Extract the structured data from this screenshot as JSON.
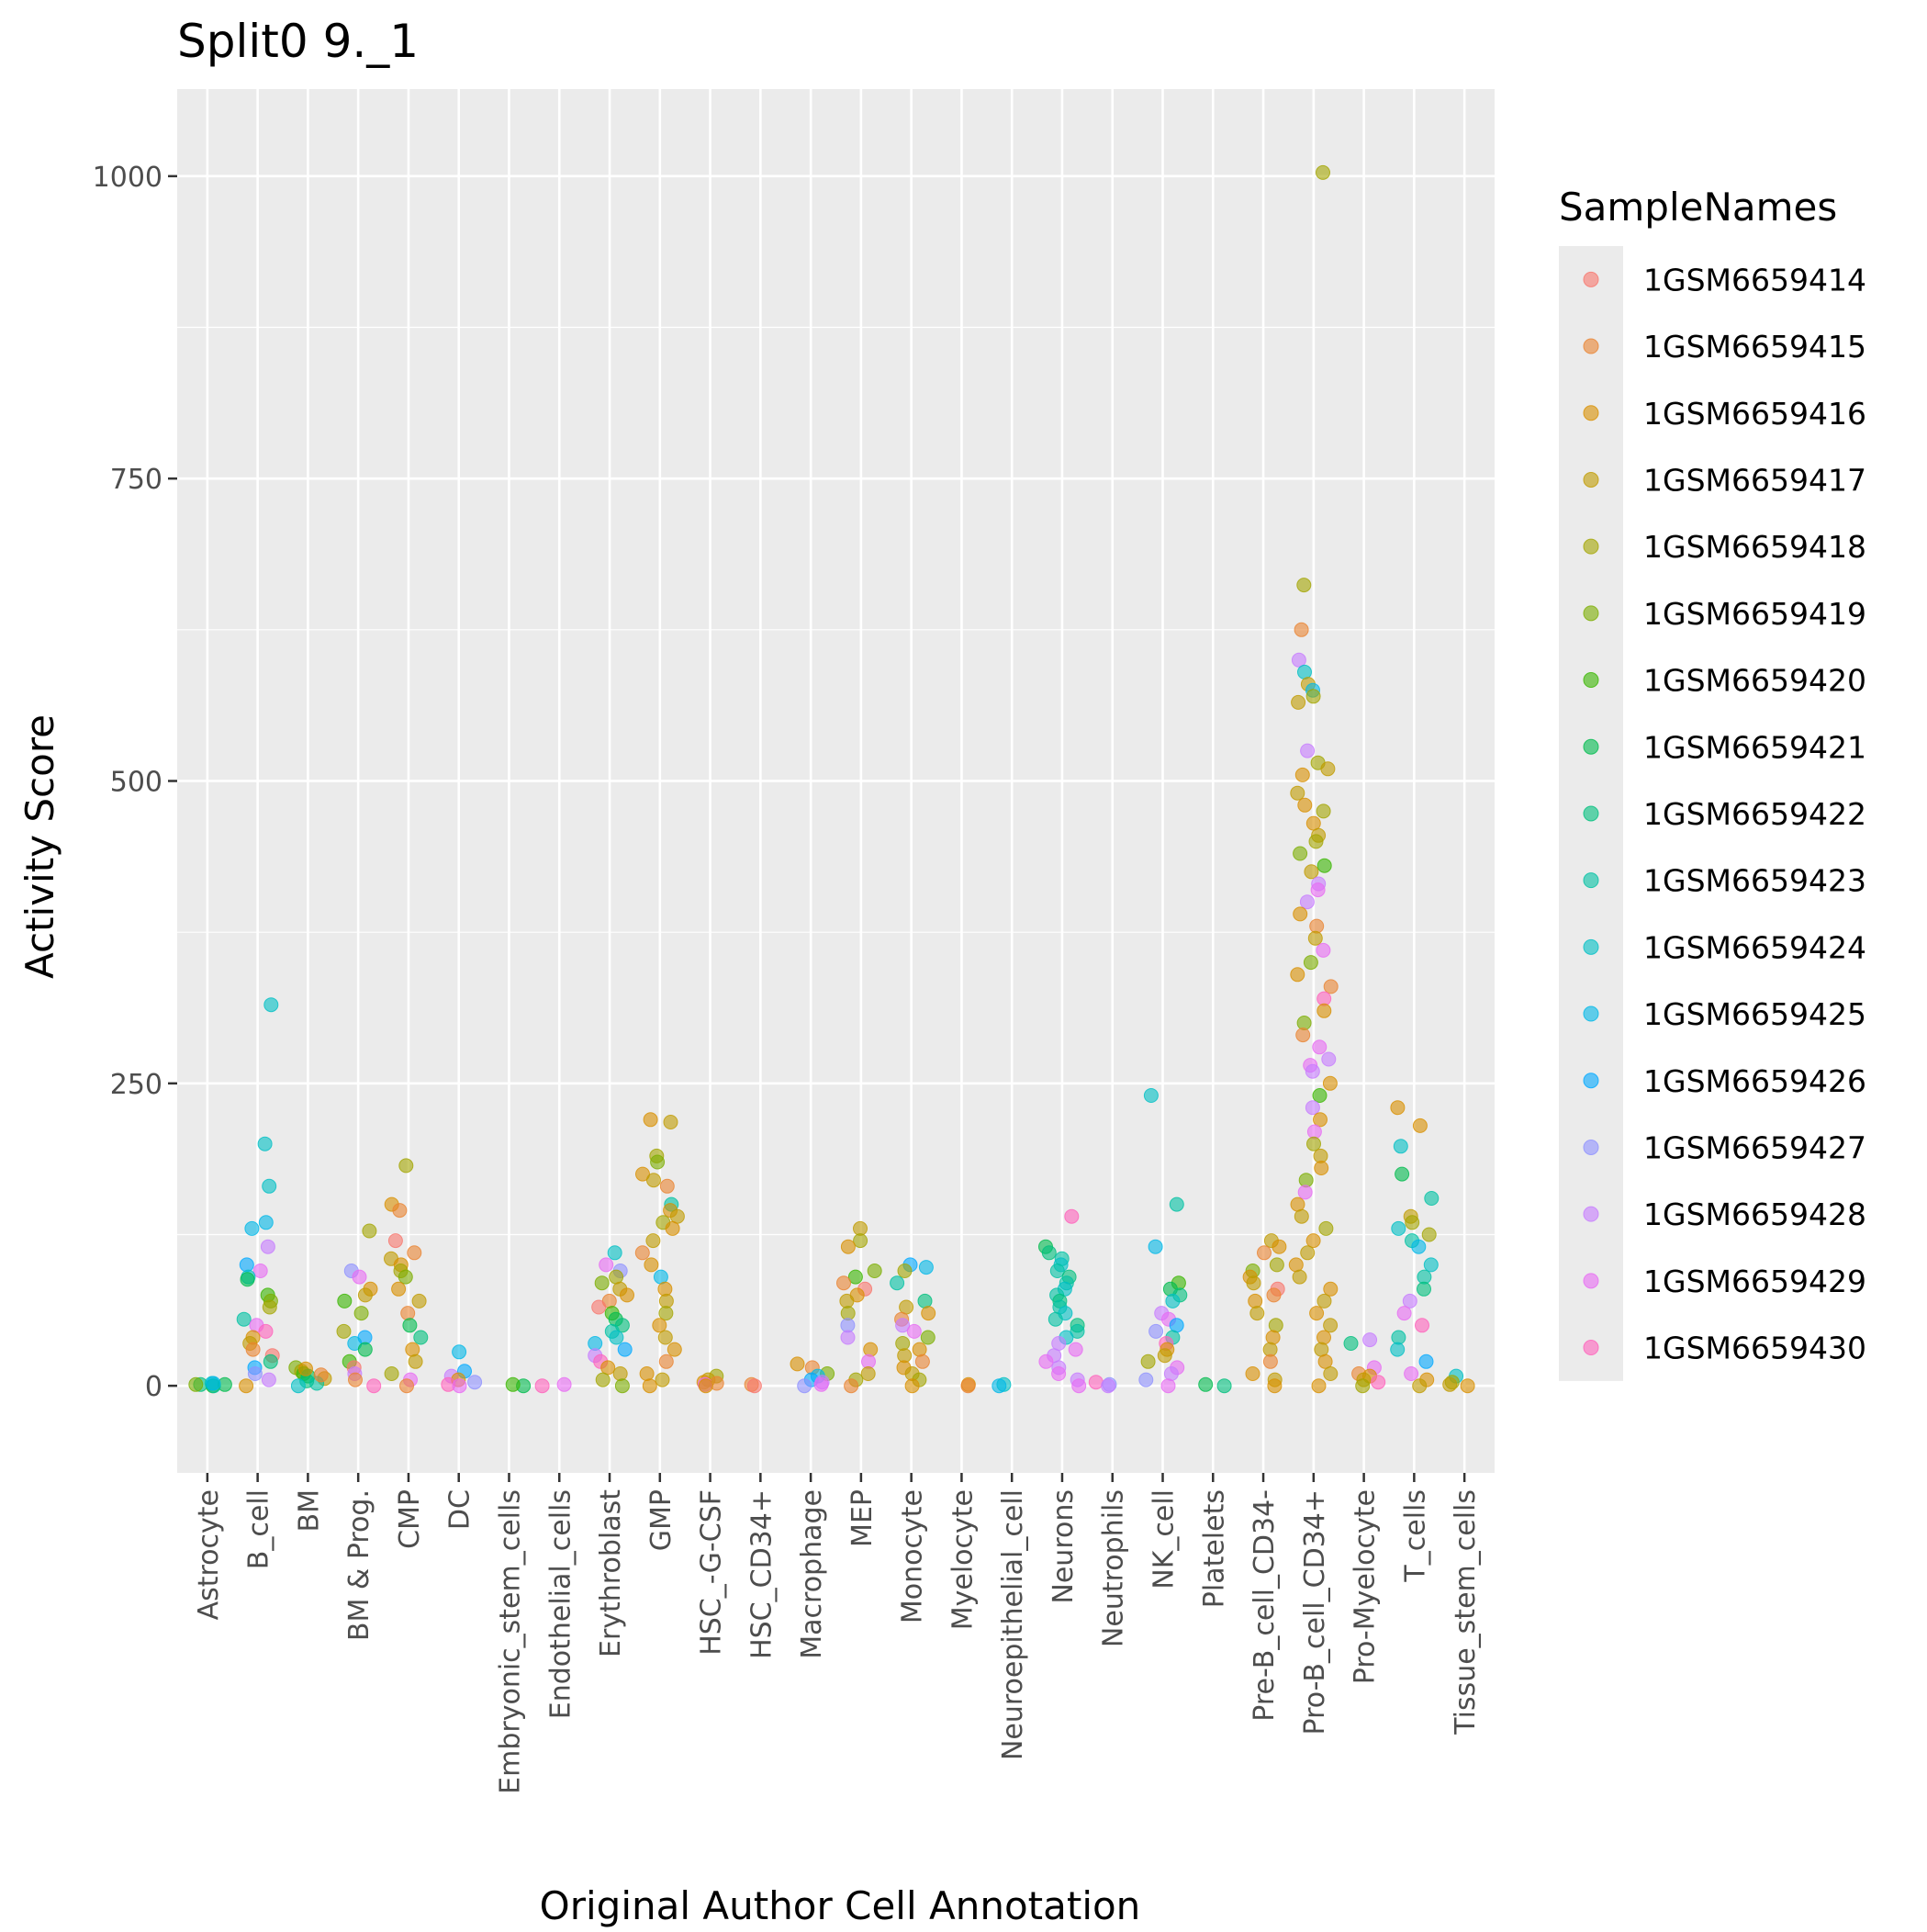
{
  "chart_data": {
    "type": "scatter",
    "title": "Split0 9._1",
    "xlabel": "Original Author Cell Annotation",
    "ylabel": "Activity Score",
    "ylim": [
      -72,
      1072
    ],
    "yticks": [
      0,
      250,
      500,
      750,
      1000
    ],
    "grid": true,
    "legend": {
      "title": "SampleNames",
      "position": "right"
    },
    "categories": [
      "Astrocyte",
      "B_cell",
      "BM",
      "BM & Prog.",
      "CMP",
      "DC",
      "Embryonic_stem_cells",
      "Endothelial_cells",
      "Erythroblast",
      "GMP",
      "HSC_-G-CSF",
      "HSC_CD34+",
      "Macrophage",
      "MEP",
      "Monocyte",
      "Myelocyte",
      "Neuroepithelial_cell",
      "Neurons",
      "Neutrophils",
      "NK_cell",
      "Platelets",
      "Pre-B_cell_CD34-",
      "Pro-B_cell_CD34+",
      "Pro-Myelocyte",
      "T_cells",
      "Tissue_stem_cells"
    ],
    "series": [
      {
        "name": "1GSM6659414",
        "color": "#F8766D"
      },
      {
        "name": "1GSM6659415",
        "color": "#EA8331"
      },
      {
        "name": "1GSM6659416",
        "color": "#D89000"
      },
      {
        "name": "1GSM6659417",
        "color": "#C09B00"
      },
      {
        "name": "1GSM6659418",
        "color": "#A3A500"
      },
      {
        "name": "1GSM6659419",
        "color": "#7CAE00"
      },
      {
        "name": "1GSM6659420",
        "color": "#39B600"
      },
      {
        "name": "1GSM6659421",
        "color": "#00BB4E"
      },
      {
        "name": "1GSM6659422",
        "color": "#00BF7D"
      },
      {
        "name": "1GSM6659423",
        "color": "#00C1A3"
      },
      {
        "name": "1GSM6659424",
        "color": "#00BFC4"
      },
      {
        "name": "1GSM6659425",
        "color": "#00B8E7"
      },
      {
        "name": "1GSM6659426",
        "color": "#00A9FF"
      },
      {
        "name": "1GSM6659427",
        "color": "#8F91FF"
      },
      {
        "name": "1GSM6659428",
        "color": "#C77CFF"
      },
      {
        "name": "1GSM6659429",
        "color": "#E76BF3"
      },
      {
        "name": "1GSM6659430",
        "color": "#FF62BC"
      }
    ],
    "points": [
      {
        "cat": "Astrocyte",
        "ys": [
          0,
          1,
          2,
          1,
          0,
          2,
          1
        ],
        "series": [
          6,
          8,
          10,
          7,
          9,
          11,
          5
        ]
      },
      {
        "cat": "B_cell",
        "ys": [
          315,
          200,
          165,
          135,
          130,
          115,
          100,
          95,
          90,
          88,
          75,
          70,
          65,
          55,
          50,
          45,
          40,
          35,
          30,
          25,
          20,
          15,
          10,
          5,
          0
        ],
        "series": [
          10,
          10,
          10,
          11,
          11,
          14,
          12,
          15,
          10,
          7,
          6,
          5,
          4,
          9,
          15,
          16,
          2,
          3,
          1,
          0,
          8,
          12,
          13,
          14,
          2
        ]
      },
      {
        "cat": "BM",
        "ys": [
          15,
          12,
          10,
          8,
          6,
          4,
          2,
          0,
          14,
          9
        ],
        "series": [
          5,
          4,
          6,
          7,
          3,
          8,
          9,
          10,
          2,
          1
        ]
      },
      {
        "cat": "BM & Prog.",
        "ys": [
          128,
          95,
          90,
          80,
          75,
          70,
          60,
          45,
          40,
          35,
          30,
          20,
          15,
          10,
          5,
          0
        ],
        "series": [
          4,
          13,
          15,
          2,
          3,
          6,
          5,
          4,
          12,
          11,
          7,
          6,
          0,
          14,
          1,
          16
        ]
      },
      {
        "cat": "CMP",
        "ys": [
          182,
          150,
          145,
          120,
          110,
          105,
          100,
          95,
          90,
          80,
          70,
          60,
          50,
          40,
          30,
          20,
          10,
          5,
          0
        ],
        "series": [
          4,
          2,
          1,
          0,
          1,
          3,
          2,
          4,
          5,
          2,
          3,
          1,
          7,
          8,
          2,
          3,
          4,
          15,
          1
        ]
      },
      {
        "cat": "DC",
        "ys": [
          28,
          12,
          8,
          5,
          3,
          1,
          0
        ],
        "series": [
          11,
          12,
          14,
          2,
          13,
          16,
          15
        ]
      },
      {
        "cat": "Embryonic_stem_cells",
        "ys": [
          0,
          1
        ],
        "series": [
          7,
          6
        ]
      },
      {
        "cat": "Endothelial_cells",
        "ys": [
          0,
          1
        ],
        "series": [
          16,
          15
        ]
      },
      {
        "cat": "Erythroblast",
        "ys": [
          110,
          100,
          95,
          90,
          85,
          80,
          75,
          70,
          65,
          60,
          55,
          50,
          45,
          40,
          35,
          30,
          25,
          20,
          15,
          10,
          5,
          0
        ],
        "series": [
          10,
          15,
          13,
          4,
          5,
          3,
          2,
          1,
          0,
          6,
          7,
          8,
          9,
          10,
          11,
          12,
          14,
          16,
          2,
          3,
          4,
          5
        ]
      },
      {
        "cat": "GMP",
        "ys": [
          220,
          218,
          190,
          185,
          175,
          170,
          165,
          150,
          145,
          140,
          135,
          130,
          120,
          110,
          100,
          90,
          80,
          70,
          60,
          50,
          40,
          30,
          20,
          10,
          5,
          0
        ],
        "series": [
          2,
          3,
          4,
          5,
          2,
          3,
          1,
          9,
          2,
          3,
          4,
          2,
          3,
          1,
          2,
          11,
          2,
          3,
          4,
          2,
          3,
          2,
          1,
          2,
          3,
          2
        ]
      },
      {
        "cat": "HSC_-G-CSF",
        "ys": [
          8,
          5,
          3,
          2,
          1,
          0
        ],
        "series": [
          4,
          3,
          2,
          1,
          15,
          2
        ]
      },
      {
        "cat": "HSC_CD34+",
        "ys": [
          1,
          0
        ],
        "series": [
          1,
          0
        ]
      },
      {
        "cat": "Macrophage",
        "ys": [
          18,
          15,
          10,
          8,
          5,
          3,
          1,
          0
        ],
        "series": [
          2,
          1,
          5,
          11,
          12,
          14,
          15,
          13
        ]
      },
      {
        "cat": "MEP",
        "ys": [
          130,
          120,
          115,
          95,
          90,
          85,
          80,
          75,
          70,
          60,
          50,
          40,
          30,
          20,
          10,
          5,
          0
        ],
        "series": [
          3,
          4,
          2,
          5,
          6,
          1,
          0,
          2,
          3,
          4,
          13,
          14,
          2,
          15,
          3,
          4,
          1
        ]
      },
      {
        "cat": "Monocyte",
        "ys": [
          100,
          98,
          95,
          85,
          70,
          65,
          60,
          55,
          50,
          45,
          40,
          35,
          30,
          25,
          20,
          15,
          10,
          5,
          0
        ],
        "series": [
          12,
          11,
          4,
          9,
          8,
          3,
          2,
          1,
          14,
          15,
          5,
          4,
          2,
          3,
          1,
          2,
          3,
          4,
          2
        ]
      },
      {
        "cat": "Myelocyte",
        "ys": [
          1,
          0
        ],
        "series": [
          2,
          1
        ]
      },
      {
        "cat": "Neuroepithelial_cell",
        "ys": [
          1,
          0
        ],
        "series": [
          10,
          11
        ]
      },
      {
        "cat": "Neurons",
        "ys": [
          140,
          115,
          110,
          105,
          100,
          95,
          90,
          85,
          80,
          75,
          70,
          65,
          60,
          55,
          50,
          45,
          40,
          35,
          30,
          25,
          20,
          15,
          10,
          5,
          0
        ],
        "series": [
          16,
          7,
          8,
          9,
          10,
          9,
          8,
          9,
          10,
          9,
          8,
          9,
          10,
          9,
          8,
          9,
          10,
          14,
          15,
          14,
          15,
          14,
          15,
          14,
          15
        ]
      },
      {
        "cat": "Neutrophils",
        "ys": [
          3,
          1,
          0
        ],
        "series": [
          16,
          13,
          14
        ]
      },
      {
        "cat": "NK_cell",
        "ys": [
          240,
          150,
          115,
          85,
          80,
          75,
          70,
          60,
          55,
          50,
          45,
          40,
          35,
          30,
          25,
          20,
          15,
          10,
          5,
          0
        ],
        "series": [
          10,
          9,
          11,
          6,
          7,
          8,
          10,
          14,
          15,
          12,
          13,
          9,
          16,
          2,
          3,
          4,
          15,
          14,
          13,
          15
        ]
      },
      {
        "cat": "Platelets",
        "ys": [
          1,
          0
        ],
        "series": [
          7,
          8
        ]
      },
      {
        "cat": "Pre-B_cell_CD34-",
        "ys": [
          120,
          115,
          110,
          100,
          95,
          90,
          85,
          80,
          75,
          70,
          60,
          50,
          40,
          30,
          20,
          10,
          5,
          0
        ],
        "series": [
          3,
          2,
          1,
          4,
          5,
          2,
          3,
          0,
          1,
          2,
          3,
          4,
          2,
          3,
          1,
          2,
          3,
          2
        ]
      },
      {
        "cat": "Pro-B_cell_CD34+",
        "ys": [
          1003,
          662,
          625,
          600,
          590,
          580,
          575,
          570,
          565,
          525,
          515,
          510,
          505,
          490,
          480,
          475,
          465,
          455,
          450,
          440,
          430,
          425,
          415,
          410,
          400,
          390,
          380,
          370,
          360,
          350,
          340,
          330,
          320,
          310,
          300,
          290,
          280,
          270,
          265,
          260,
          250,
          240,
          230,
          220,
          210,
          200,
          190,
          180,
          170,
          160,
          150,
          140,
          130,
          120,
          110,
          100,
          90,
          80,
          70,
          60,
          50,
          40,
          30,
          20,
          10,
          0
        ],
        "series": [
          4,
          4,
          1,
          14,
          10,
          3,
          11,
          4,
          3,
          14,
          4,
          3,
          2,
          3,
          2,
          4,
          2,
          3,
          4,
          5,
          6,
          3,
          14,
          15,
          14,
          2,
          1,
          3,
          15,
          5,
          2,
          1,
          16,
          2,
          5,
          1,
          15,
          14,
          15,
          14,
          2,
          6,
          14,
          2,
          15,
          4,
          3,
          2,
          5,
          15,
          2,
          3,
          4,
          2,
          3,
          2,
          3,
          2,
          3,
          2,
          3,
          2,
          3,
          2,
          3,
          2
        ]
      },
      {
        "cat": "Pro-Myelocyte",
        "ys": [
          38,
          35,
          15,
          10,
          8,
          5,
          3,
          0
        ],
        "series": [
          14,
          8,
          15,
          1,
          2,
          3,
          16,
          4
        ]
      },
      {
        "cat": "T_cells",
        "ys": [
          230,
          215,
          198,
          175,
          155,
          140,
          135,
          130,
          125,
          120,
          115,
          100,
          90,
          80,
          70,
          60,
          50,
          40,
          30,
          20,
          10,
          5,
          0
        ],
        "series": [
          2,
          2,
          10,
          7,
          9,
          3,
          4,
          10,
          4,
          9,
          11,
          10,
          9,
          8,
          14,
          15,
          16,
          9,
          10,
          12,
          15,
          2,
          3
        ]
      },
      {
        "cat": "Tissue_stem_cells",
        "ys": [
          8,
          3,
          1,
          0
        ],
        "series": [
          10,
          4,
          3,
          2
        ]
      }
    ]
  }
}
